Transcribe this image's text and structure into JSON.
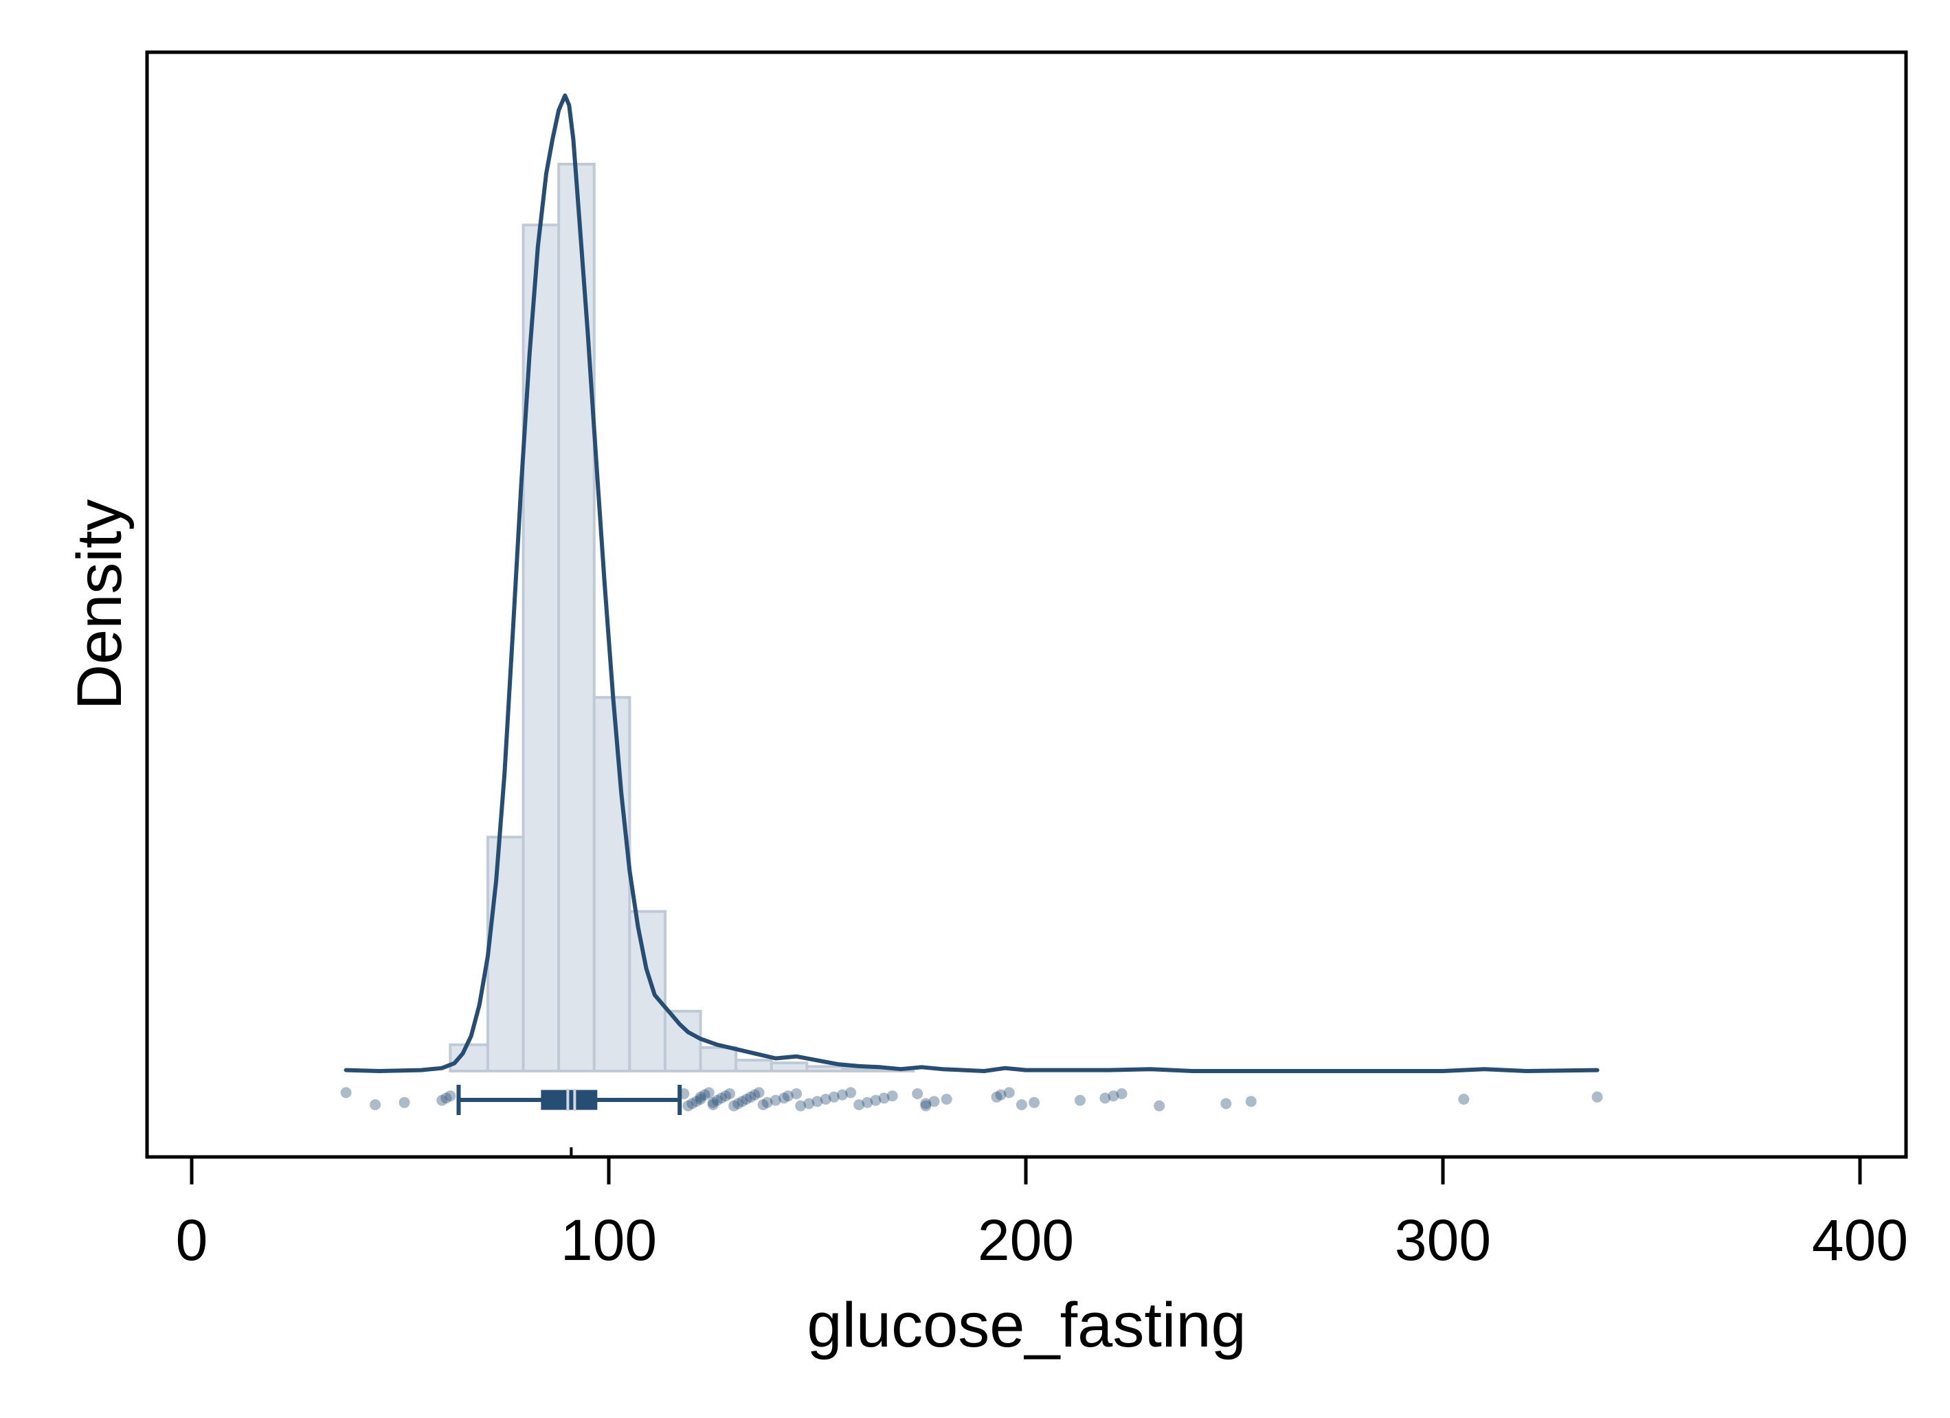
{
  "chart_data": {
    "type": "histogram",
    "xlabel": "glucose_fasting",
    "ylabel": "Density",
    "xlim": [
      -10,
      412
    ],
    "xticks": [
      0,
      100,
      200,
      300,
      400
    ],
    "y_tick_labels": "none",
    "grid": false,
    "legend": "none",
    "histogram": {
      "bin_edges": [
        62,
        71,
        79.5,
        88,
        96.5,
        105,
        113.5,
        122,
        130.5,
        139,
        147.5,
        156,
        164.5,
        173
      ],
      "relative_heights": [
        0.029,
        0.258,
        0.933,
        1.0,
        0.412,
        0.176,
        0.066,
        0.026,
        0.012,
        0.009,
        0.005,
        0.003,
        0.002
      ]
    },
    "density_curve": {
      "x": [
        37,
        45,
        55,
        60,
        63,
        65,
        67,
        69,
        71,
        73,
        75,
        77,
        79,
        81,
        83,
        85,
        86.5,
        88,
        89.5,
        90.5,
        91.5,
        93,
        95,
        97,
        99,
        101,
        103,
        105,
        107,
        109,
        111,
        113,
        115,
        117,
        119,
        122,
        126,
        130,
        135,
        140,
        145,
        150,
        155,
        160,
        165,
        170,
        175,
        180,
        185,
        190,
        195,
        200,
        210,
        220,
        230,
        240,
        250,
        260,
        270,
        280,
        300,
        310,
        320,
        337
      ],
      "relative_y": [
        0.001,
        0.0,
        0.001,
        0.003,
        0.008,
        0.018,
        0.036,
        0.068,
        0.118,
        0.195,
        0.305,
        0.45,
        0.6,
        0.735,
        0.845,
        0.92,
        0.955,
        0.985,
        1.0,
        0.99,
        0.955,
        0.87,
        0.755,
        0.625,
        0.5,
        0.385,
        0.285,
        0.205,
        0.148,
        0.105,
        0.078,
        0.068,
        0.058,
        0.048,
        0.04,
        0.033,
        0.027,
        0.023,
        0.018,
        0.013,
        0.015,
        0.011,
        0.007,
        0.005,
        0.004,
        0.002,
        0.004,
        0.002,
        0.001,
        0.0,
        0.003,
        0.001,
        0.001,
        0.001,
        0.002,
        0.0,
        0.0,
        0.0,
        0.0,
        0.0,
        0.0,
        0.002,
        0.0,
        0.001
      ]
    },
    "boxplot": {
      "whisker_low": 64,
      "q1": 84,
      "median": 91,
      "q3": 97,
      "whisker_high": 117
    },
    "observations": [
      37,
      44,
      51,
      60,
      61,
      62,
      118,
      119,
      120,
      121,
      122,
      122,
      123,
      124,
      125,
      125,
      126,
      127,
      128,
      129,
      130,
      131,
      132,
      133,
      134,
      135,
      136,
      137,
      138,
      140,
      142,
      143,
      145,
      146,
      148,
      150,
      152,
      154,
      156,
      158,
      160,
      162,
      164,
      166,
      168,
      174,
      176,
      176,
      178,
      181,
      193,
      194,
      196,
      199,
      202,
      213,
      219,
      221,
      223,
      232,
      248,
      254,
      305,
      337
    ],
    "colors": {
      "line": "#264d73",
      "bar_fill": "#dde4eb",
      "bar_edge": "#bfcad6",
      "points": "#264d73",
      "frame": "#000000"
    }
  }
}
